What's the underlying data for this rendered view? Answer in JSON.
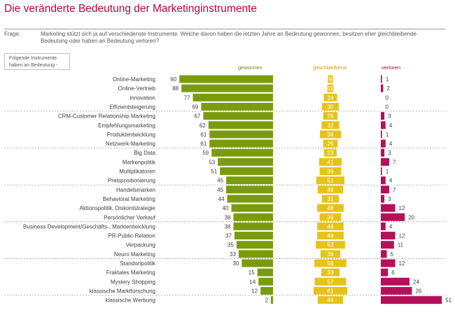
{
  "title": "Die veränderte Bedeutung der Marketinginstrumente",
  "question_label": "Frage:",
  "question_text": "Marketing stützt sich ja auf verschiedenste Instrumente. Welche davon haben die letzten Jahre an Bedeutung gewonnen, besitzen eher gleichbleibende Bedeutung oder haben an Bedeutung verloren?",
  "box_text": "Folgende Instrumente haben an Bedeutung -",
  "colors": {
    "gewonnen": "#7a9c0c",
    "gleichbleibend": "#e6c31a",
    "verloren": "#b5105a",
    "title": "#c0003c"
  },
  "chart_data": {
    "type": "bar",
    "title": "Die veränderte Bedeutung der Marketinginstrumente",
    "categories": [
      "Online-Marketing",
      "Online-Vertrieb",
      "Innovation",
      "Effizientsteigerung",
      "CRM-Customer Relationship Marketing",
      "Empfehlungsmarketing",
      "Produktentwicklung",
      "Netzwerk-Marketing",
      "Big Data",
      "Markenpolitik",
      "Multiplikatoren",
      "Preispositionierung",
      "Handelsmarken",
      "Behavioral Marketing",
      "Aktionspolitik, Diskontstrategie",
      "Persönlicher Verkauf",
      "Business Development/Geschäfts-, Marktentwicklung",
      "PR-Public-Relation",
      "Verpackung",
      "Neuro Marketing",
      "Standortpolitik",
      "Fraktales Marketing",
      "Mystery Shopping",
      "klassische Marktforschung",
      "klassische Werbung"
    ],
    "series": [
      {
        "name": "gewonnen",
        "values": [
          90,
          88,
          77,
          69,
          67,
          62,
          61,
          61,
          59,
          53,
          51,
          45,
          45,
          44,
          40,
          38,
          38,
          37,
          35,
          33,
          30,
          15,
          14,
          12,
          2
        ]
      },
      {
        "name": "gleichbleibend",
        "values": [
          9,
          11,
          24,
          30,
          26,
          32,
          38,
          26,
          23,
          41,
          39,
          51,
          46,
          31,
          48,
          39,
          48,
          48,
          53,
          36,
          58,
          33,
          57,
          61,
          46
        ]
      },
      {
        "name": "verloren",
        "values": [
          1,
          2,
          0,
          0,
          3,
          4,
          1,
          4,
          3,
          7,
          1,
          4,
          7,
          3,
          12,
          20,
          4,
          12,
          11,
          5,
          12,
          6,
          24,
          26,
          51
        ]
      }
    ]
  }
}
